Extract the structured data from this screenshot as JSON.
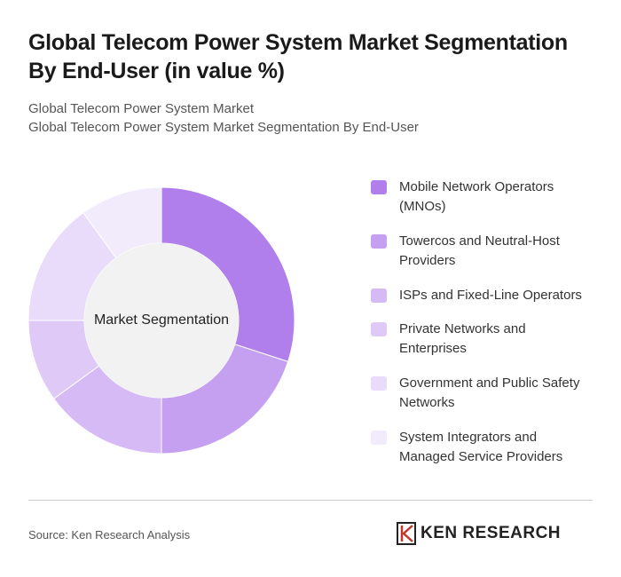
{
  "chart_data": {
    "type": "donut",
    "title": "Global Telecom Power System Market Segmentation By End-User (in value %)",
    "subtitle": [
      "Global Telecom Power System Market",
      "Global Telecom Power System Market Segmentation By End-User"
    ],
    "center_label": "Market Segmentation",
    "categories": [
      "Mobile Network Operators (MNOs)",
      "Towercos and Neutral-Host Providers",
      "ISPs and Fixed-Line Operators",
      "Private Networks and Enterprises",
      "Government and Public Safety Networks",
      "System Integrators and Managed Service Providers"
    ],
    "values": [
      30,
      20,
      15,
      10,
      15,
      10
    ],
    "colors": [
      "#b07fec",
      "#c5a0f1",
      "#d5baf5",
      "#dfcaf7",
      "#e9dbfa",
      "#f2ebfc"
    ],
    "source": "Source: Ken Research Analysis",
    "brand": "KEN RESEARCH"
  }
}
